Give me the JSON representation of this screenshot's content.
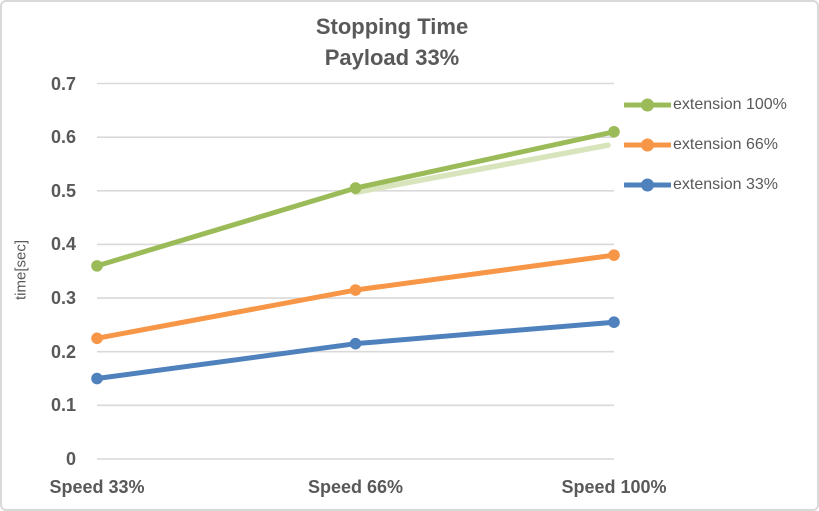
{
  "title": {
    "line1": "Stopping Time",
    "line2": "Payload 33%"
  },
  "y_axis": {
    "label": "time[sec]",
    "ticks": [
      "0.7",
      "0.6",
      "0.5",
      "0.4",
      "0.3",
      "0.2",
      "0.1",
      "0"
    ]
  },
  "x_axis": {
    "ticks": [
      "Speed 33%",
      "Speed 66%",
      "Speed 100%"
    ]
  },
  "legend": {
    "items": [
      "extension 100%",
      "extension 66%",
      "extension 33%"
    ]
  },
  "colors": {
    "text": "#595959",
    "grid": "#D9D9D9",
    "border": "#D9D9D9",
    "background": "#FFFFFF"
  },
  "chart_data": {
    "type": "line",
    "title": "Stopping Time — Payload 33%",
    "categories": [
      "Speed 33%",
      "Speed 66%",
      "Speed 100%"
    ],
    "series": [
      {
        "name": "extension 100%",
        "color": "#9BBB59",
        "values": [
          0.36,
          0.505,
          0.61
        ]
      },
      {
        "name": "extension 66%",
        "color": "#F79646",
        "values": [
          0.225,
          0.315,
          0.38
        ]
      },
      {
        "name": "extension 33%",
        "color": "#4F81BD",
        "values": [
          0.15,
          0.215,
          0.255
        ]
      }
    ],
    "shadow": {
      "series": "extension 100%",
      "color": "#D8E5BC",
      "x_indices": [
        1,
        2
      ],
      "values": [
        0.497,
        0.585
      ]
    },
    "xlabel": "",
    "ylabel": "time[sec]",
    "ylim": [
      0,
      0.7
    ],
    "ytick_step": 0.1,
    "grid": true,
    "legend_position": "right",
    "marker": "circle"
  }
}
